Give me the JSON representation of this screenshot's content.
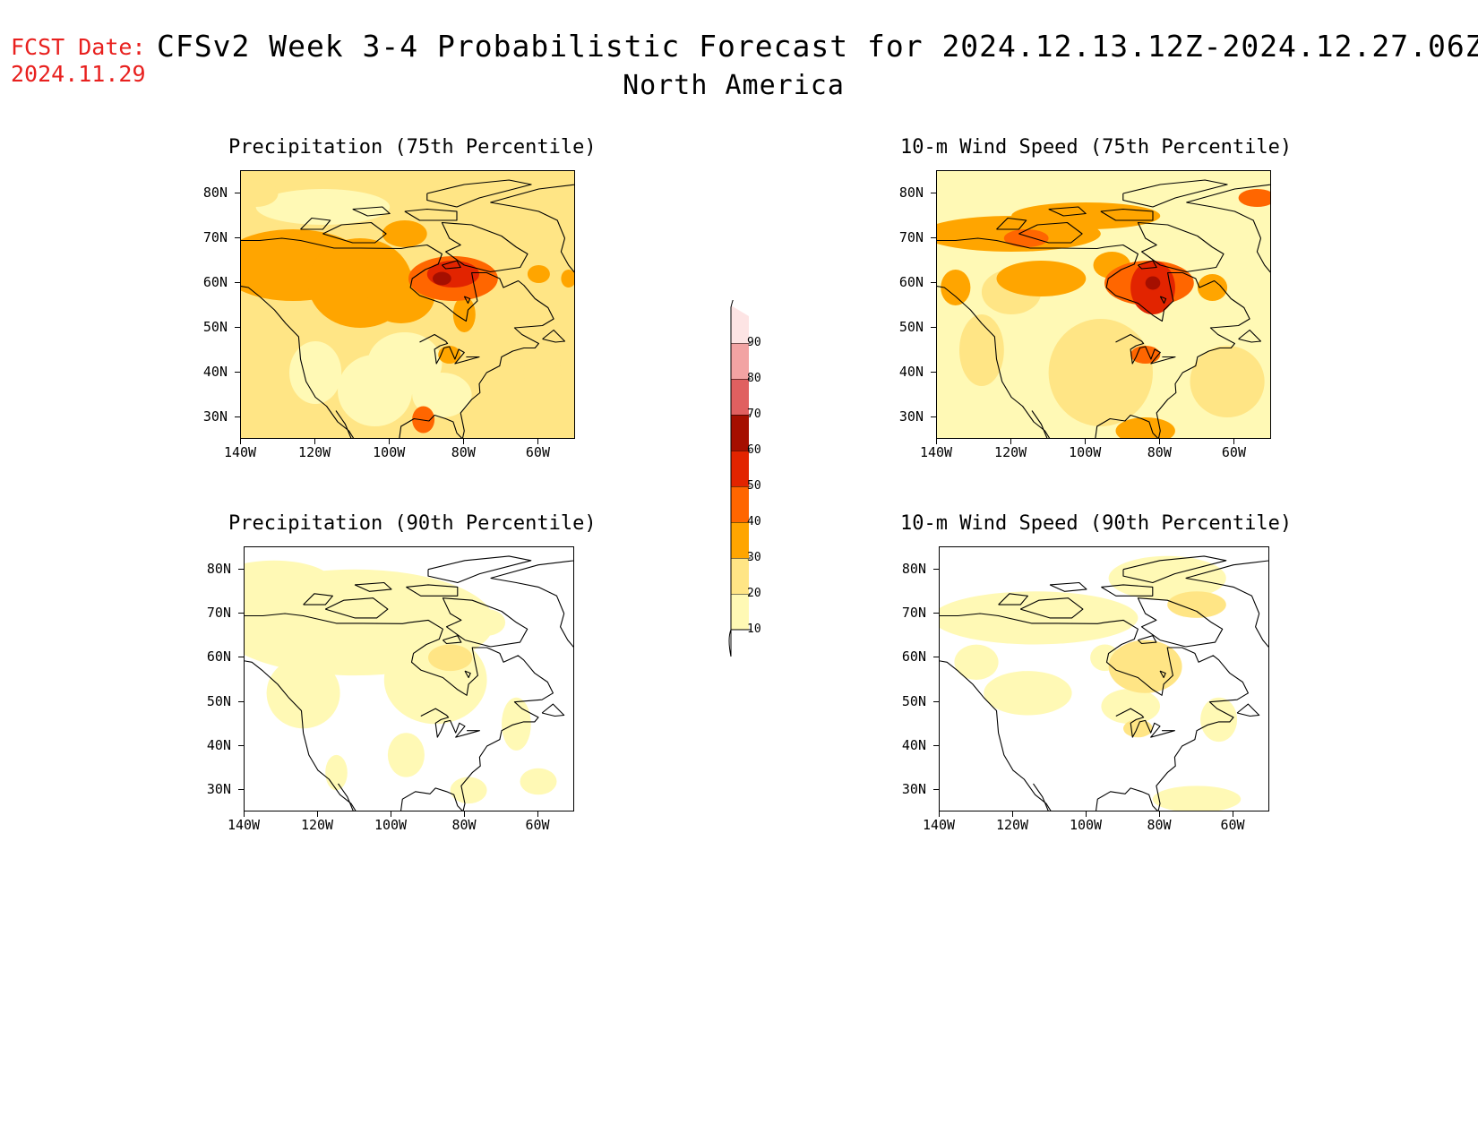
{
  "header": {
    "fcst_label": "FCST Date:",
    "fcst_date": "2024.11.29",
    "title": "CFSv2 Week 3-4 Probabilistic Forecast for 2024.12.13.12Z-2024.12.27.06Z",
    "region": "North America"
  },
  "panels": [
    {
      "title": "Precipitation (75th Percentile)",
      "variant": "p75precip"
    },
    {
      "title": "10-m Wind Speed (75th Percentile)",
      "variant": "p75wind"
    },
    {
      "title": "Precipitation (90th Percentile)",
      "variant": "p90precip"
    },
    {
      "title": "10-m Wind Speed (90th Percentile)",
      "variant": "p90wind"
    }
  ],
  "axes": {
    "lat_labels": [
      "80N",
      "70N",
      "60N",
      "50N",
      "40N",
      "30N"
    ],
    "lon_labels": [
      "140W",
      "120W",
      "100W",
      "80W",
      "60W"
    ]
  },
  "colorbar": {
    "levels": [
      10,
      20,
      30,
      40,
      50,
      60,
      70,
      80,
      90
    ],
    "colors": [
      "#fff9b5",
      "#ffe585",
      "#ffa500",
      "#ff6600",
      "#e22400",
      "#a50f00",
      "#e06060",
      "#f2a3a3",
      "#fde4e4"
    ]
  }
}
